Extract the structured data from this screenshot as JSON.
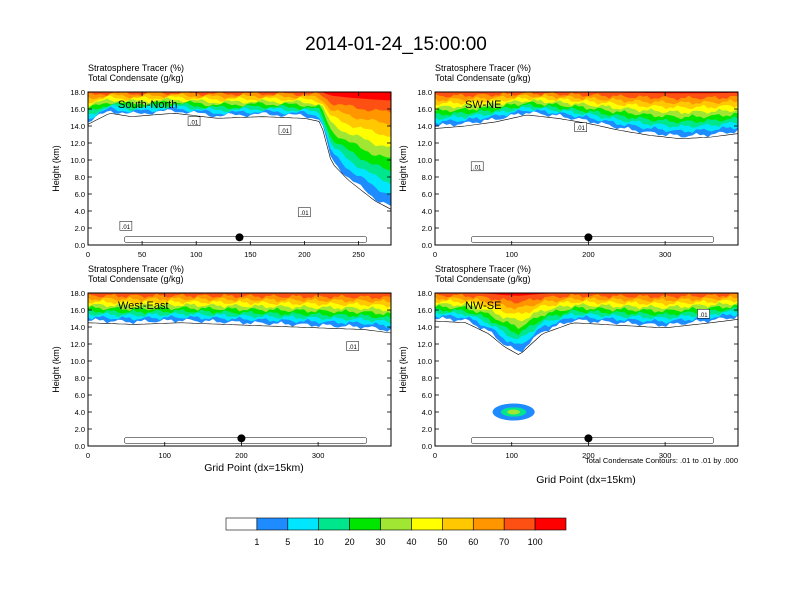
{
  "figure": {
    "title": "2014-01-24_15:00:00",
    "left_title_1": "Stratosphere Tracer   (%)",
    "left_title_2": "Total Condensate   (g/kg)",
    "xlabel": "Grid Point (dx=15km)",
    "ylabel": "Height (km)",
    "contour_note": "Total Condensate Contours: .01 to .01 by .000",
    "contour_label": ".01"
  },
  "colorbar": {
    "colors": [
      "#ffffff",
      "#1e8cff",
      "#00e6ff",
      "#00e68c",
      "#00e600",
      "#a0e632",
      "#ffff00",
      "#ffc800",
      "#ff9600",
      "#ff5014",
      "#ff0000"
    ],
    "labels": [
      "1",
      "5",
      "10",
      "20",
      "30",
      "40",
      "50",
      "60",
      "70",
      "100"
    ]
  },
  "chart_data": [
    {
      "type": "heatmap",
      "panel": "South-North",
      "title": "South-North",
      "xlim": [
        0,
        280
      ],
      "ylim": [
        0,
        18
      ],
      "xticks": [
        0,
        50,
        100,
        150,
        200,
        250
      ],
      "yticks": [
        0,
        2,
        4,
        6,
        8,
        10,
        12,
        14,
        16,
        18
      ],
      "xtick_labels": [
        "0",
        "50",
        "100",
        "150",
        "200",
        "250"
      ],
      "ytick_labels": [
        "0.0",
        "2.0",
        "4.0",
        "6.0",
        "8.0",
        "10.0",
        "12.0",
        "14.0",
        "16.0",
        "18.0"
      ],
      "tracer_lower_edge_km": [
        [
          0,
          14.5
        ],
        [
          20,
          15.8
        ],
        [
          40,
          15.4
        ],
        [
          80,
          15.8
        ],
        [
          120,
          15.2
        ],
        [
          160,
          15.4
        ],
        [
          200,
          15.2
        ],
        [
          215,
          14.8
        ],
        [
          225,
          10.0
        ],
        [
          240,
          8.0
        ],
        [
          255,
          6.5
        ],
        [
          265,
          5.5
        ],
        [
          280,
          4.5
        ]
      ],
      "marker": {
        "x": 140,
        "y": 0.9
      },
      "contour_labels": [
        {
          "x": 98,
          "y": 14.5
        },
        {
          "x": 35,
          "y": 2.2
        },
        {
          "x": 182,
          "y": 13.5
        },
        {
          "x": 200,
          "y": 3.8
        }
      ]
    },
    {
      "type": "heatmap",
      "panel": "SW-NE",
      "title": "SW-NE",
      "xlim": [
        0,
        395
      ],
      "ylim": [
        0,
        18
      ],
      "xticks": [
        0,
        100,
        200,
        300
      ],
      "yticks": [
        0,
        2,
        4,
        6,
        8,
        10,
        12,
        14,
        16,
        18
      ],
      "xtick_labels": [
        "0",
        "100",
        "200",
        "300"
      ],
      "ytick_labels": [
        "0.0",
        "2.0",
        "4.0",
        "6.0",
        "8.0",
        "10.0",
        "12.0",
        "14.0",
        "16.0",
        "18.0"
      ],
      "tracer_lower_edge_km": [
        [
          0,
          14.0
        ],
        [
          40,
          14.3
        ],
        [
          80,
          14.8
        ],
        [
          120,
          15.6
        ],
        [
          160,
          15.2
        ],
        [
          200,
          14.6
        ],
        [
          240,
          13.8
        ],
        [
          280,
          13.2
        ],
        [
          320,
          12.8
        ],
        [
          360,
          13.0
        ],
        [
          395,
          13.4
        ]
      ],
      "marker": {
        "x": 200,
        "y": 0.9
      },
      "contour_labels": [
        {
          "x": 190,
          "y": 13.8
        },
        {
          "x": 55,
          "y": 9.2
        }
      ]
    },
    {
      "type": "heatmap",
      "panel": "West-East",
      "title": "West-East",
      "xlim": [
        0,
        395
      ],
      "ylim": [
        0,
        18
      ],
      "xticks": [
        0,
        100,
        200,
        300
      ],
      "yticks": [
        0,
        2,
        4,
        6,
        8,
        10,
        12,
        14,
        16,
        18
      ],
      "xtick_labels": [
        "0",
        "100",
        "200",
        "300"
      ],
      "ytick_labels": [
        "0.0",
        "2.0",
        "4.0",
        "6.0",
        "8.0",
        "10.0",
        "12.0",
        "14.0",
        "16.0",
        "18.0"
      ],
      "tracer_lower_edge_km": [
        [
          0,
          14.8
        ],
        [
          60,
          14.6
        ],
        [
          120,
          14.8
        ],
        [
          180,
          14.6
        ],
        [
          240,
          14.4
        ],
        [
          300,
          14.2
        ],
        [
          360,
          14.0
        ],
        [
          395,
          13.6
        ]
      ],
      "marker": {
        "x": 200,
        "y": 0.9
      },
      "contour_labels": [
        {
          "x": 345,
          "y": 11.7
        }
      ]
    },
    {
      "type": "heatmap",
      "panel": "NW-SE",
      "title": "NW-SE",
      "xlim": [
        0,
        395
      ],
      "ylim": [
        0,
        18
      ],
      "xticks": [
        0,
        100,
        200,
        300
      ],
      "yticks": [
        0,
        2,
        4,
        6,
        8,
        10,
        12,
        14,
        16,
        18
      ],
      "xtick_labels": [
        "0",
        "100",
        "200",
        "300"
      ],
      "ytick_labels": [
        "0.0",
        "2.0",
        "4.0",
        "6.0",
        "8.0",
        "10.0",
        "12.0",
        "14.0",
        "16.0",
        "18.0"
      ],
      "tracer_lower_edge_km": [
        [
          0,
          15.0
        ],
        [
          40,
          14.8
        ],
        [
          70,
          13.5
        ],
        [
          90,
          12.0
        ],
        [
          110,
          11.0
        ],
        [
          140,
          13.5
        ],
        [
          180,
          14.8
        ],
        [
          240,
          14.5
        ],
        [
          300,
          14.2
        ],
        [
          360,
          14.8
        ],
        [
          395,
          15.2
        ]
      ],
      "condensate_blob": {
        "x_range": [
          75,
          130
        ],
        "y_range": [
          3.0,
          5.0
        ]
      },
      "marker": {
        "x": 200,
        "y": 0.9
      },
      "contour_labels": [
        {
          "x": 350,
          "y": 15.5
        }
      ]
    }
  ]
}
